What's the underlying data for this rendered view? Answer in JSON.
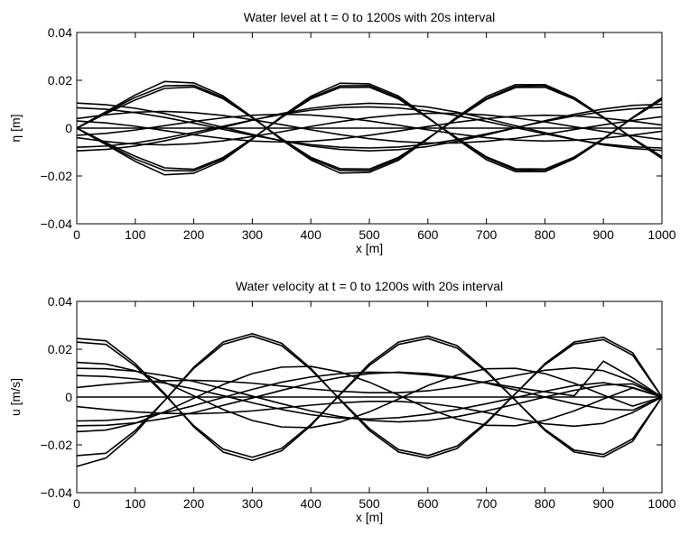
{
  "chart_data": [
    {
      "type": "line",
      "title": "Water level at t = 0 to 1200s with 20s interval",
      "xlabel": "x [m]",
      "ylabel": "η [m]",
      "xlim": [
        0,
        1000
      ],
      "ylim": [
        -0.04,
        0.04
      ],
      "xticks": [
        0,
        100,
        200,
        300,
        400,
        500,
        600,
        700,
        800,
        900,
        1000
      ],
      "yticks": [
        -0.04,
        -0.02,
        0,
        0.02,
        0.04
      ],
      "xtick_labels": [
        "0",
        "100",
        "200",
        "300",
        "400",
        "500",
        "600",
        "700",
        "800",
        "900",
        "1000"
      ],
      "ytick_labels": [
        "−0.04",
        "−0.02",
        "0",
        "0.02",
        "0.04"
      ],
      "grid": false,
      "line_color": "#000000",
      "x": [
        0,
        50,
        100,
        150,
        200,
        250,
        300,
        350,
        400,
        450,
        500,
        550,
        600,
        650,
        700,
        750,
        800,
        850,
        900,
        950,
        1000
      ],
      "series": [
        {
          "values": [
            0,
            0.0069,
            0.0139,
            0.0195,
            0.0189,
            0.0135,
            0.0046,
            -0.0049,
            -0.0133,
            -0.0188,
            -0.0185,
            -0.0134,
            -0.0045,
            0.0047,
            0.0132,
            0.0182,
            0.0182,
            0.0128,
            0.0046,
            -0.0045,
            -0.0127
          ]
        },
        {
          "values": [
            0,
            0.0066,
            0.0129,
            0.0177,
            0.0179,
            0.0128,
            0.0045,
            -0.0046,
            -0.0127,
            -0.0177,
            -0.0178,
            -0.0127,
            -0.0043,
            0.0043,
            0.0124,
            0.0175,
            0.0178,
            0.0125,
            0.0045,
            -0.0043,
            -0.0123
          ]
        },
        {
          "values": [
            0,
            0.0061,
            0.0118,
            0.0166,
            0.0172,
            0.0123,
            0.0043,
            -0.0044,
            -0.0122,
            -0.017,
            -0.0171,
            -0.0122,
            -0.0042,
            0.0041,
            0.012,
            0.017,
            0.0171,
            0.0121,
            0.0043,
            -0.0042,
            -0.0119
          ]
        },
        {
          "values": [
            0,
            -0.0069,
            -0.0139,
            -0.0195,
            -0.0189,
            -0.0135,
            -0.0046,
            0.0049,
            0.0133,
            0.0188,
            0.0185,
            0.0134,
            0.0045,
            -0.0047,
            -0.0132,
            -0.0182,
            -0.0182,
            -0.0128,
            -0.0046,
            0.0045,
            0.0127
          ]
        },
        {
          "values": [
            0,
            -0.0066,
            -0.0129,
            -0.0177,
            -0.0179,
            -0.0128,
            -0.0045,
            0.0046,
            0.0127,
            0.0177,
            0.0178,
            0.0127,
            0.0043,
            -0.0043,
            -0.0124,
            -0.0175,
            -0.0178,
            -0.0125,
            -0.0045,
            0.0043,
            0.0123
          ]
        },
        {
          "values": [
            0,
            -0.0061,
            -0.0118,
            -0.0166,
            -0.0172,
            -0.0123,
            -0.0043,
            0.0044,
            0.0122,
            0.017,
            0.0171,
            0.0122,
            0.0042,
            -0.0041,
            -0.012,
            -0.017,
            -0.0171,
            -0.0121,
            -0.0043,
            0.0042,
            0.0119
          ]
        },
        {
          "values": [
            0.0105,
            0.0098,
            0.0083,
            0.0061,
            0.0033,
            0.0003,
            -0.0026,
            -0.0053,
            -0.0075,
            -0.0089,
            -0.0095,
            -0.009,
            -0.0077,
            -0.0055,
            -0.0028,
            0.0001,
            0.0031,
            0.0058,
            0.008,
            0.0095,
            0.01
          ]
        },
        {
          "values": [
            -0.0095,
            -0.0089,
            -0.0075,
            -0.0053,
            -0.0026,
            0.0003,
            0.0033,
            0.0061,
            0.0083,
            0.0097,
            0.0104,
            0.01,
            0.0088,
            0.0067,
            0.004,
            0.001,
            -0.0019,
            -0.0047,
            -0.007,
            -0.0085,
            -0.0093
          ]
        },
        {
          "values": [
            0.004,
            0.0056,
            0.0067,
            0.007,
            0.0065,
            0.0053,
            0.0035,
            0.0015,
            -0.0007,
            -0.0027,
            -0.0044,
            -0.0056,
            -0.0062,
            -0.0062,
            -0.0055,
            -0.0043,
            -0.0026,
            -0.0006,
            0.0014,
            0.0032,
            0.0048
          ]
        },
        {
          "values": [
            -0.004,
            -0.0056,
            -0.0067,
            -0.007,
            -0.0065,
            -0.0053,
            -0.0035,
            -0.0015,
            0.0007,
            0.0027,
            0.0044,
            0.0056,
            0.0062,
            0.0062,
            0.0055,
            0.0043,
            0.0026,
            0.0006,
            -0.0014,
            -0.0032,
            -0.0048
          ]
        },
        {
          "values": [
            -0.003,
            -0.0022,
            -0.0008,
            0.001,
            0.0028,
            0.0043,
            0.0054,
            0.0058,
            0.0055,
            0.0045,
            0.003,
            0.0012,
            -0.0007,
            -0.0025,
            -0.004,
            -0.005,
            -0.0054,
            -0.0051,
            -0.0042,
            -0.0029,
            -0.0013
          ]
        },
        {
          "values": [
            0.003,
            0.0022,
            0.0008,
            -0.001,
            -0.0028,
            -0.0043,
            -0.0054,
            -0.0058,
            -0.0055,
            -0.0045,
            -0.003,
            -0.0012,
            0.0007,
            0.0025,
            0.004,
            0.005,
            0.0054,
            0.0051,
            0.0042,
            0.0029,
            0.0013
          ]
        },
        {
          "values": [
            0.0085,
            0.0079,
            0.0065,
            0.0045,
            0.0021,
            -0.0005,
            -0.003,
            -0.0052,
            -0.0069,
            -0.008,
            -0.0083,
            -0.0079,
            -0.0067,
            -0.0048,
            -0.0024,
            0.0002,
            0.0028,
            0.0051,
            0.0069,
            0.0081,
            0.0087
          ]
        },
        {
          "values": [
            -0.008,
            -0.0075,
            -0.0062,
            -0.0042,
            -0.0018,
            0.0008,
            0.0034,
            0.0057,
            0.0075,
            0.0086,
            0.0089,
            0.0084,
            0.0072,
            0.0052,
            0.0028,
            0.0002,
            -0.0024,
            -0.0048,
            -0.0066,
            -0.0078,
            -0.0083
          ]
        },
        {
          "values": [
            0,
            0,
            0,
            0,
            0,
            0,
            0,
            0,
            0,
            0,
            0,
            0,
            0,
            0,
            0,
            0,
            0,
            0,
            0,
            0,
            0
          ]
        }
      ]
    },
    {
      "type": "line",
      "title": "Water velocity at t = 0 to 1200s with 20s interval",
      "xlabel": "x [m]",
      "ylabel": "u [m/s]",
      "xlim": [
        0,
        1000
      ],
      "ylim": [
        -0.04,
        0.04
      ],
      "xticks": [
        0,
        100,
        200,
        300,
        400,
        500,
        600,
        700,
        800,
        900,
        1000
      ],
      "yticks": [
        -0.04,
        -0.02,
        0,
        0.02,
        0.04
      ],
      "xtick_labels": [
        "0",
        "100",
        "200",
        "300",
        "400",
        "500",
        "600",
        "700",
        "800",
        "900",
        "1000"
      ],
      "ytick_labels": [
        "−0.04",
        "−0.02",
        "0",
        "0.02",
        "0.04"
      ],
      "grid": false,
      "line_color": "#000000",
      "x": [
        0,
        50,
        100,
        150,
        200,
        250,
        300,
        350,
        400,
        450,
        500,
        550,
        600,
        650,
        700,
        750,
        800,
        850,
        900,
        950,
        1000
      ],
      "series": [
        {
          "values": [
            0.0245,
            0.0235,
            0.014,
            0.0015,
            -0.0125,
            -0.023,
            -0.0265,
            -0.0225,
            -0.012,
            0.0012,
            0.014,
            0.023,
            0.0255,
            0.0215,
            0.011,
            -0.0015,
            -0.014,
            -0.023,
            -0.025,
            -0.0185,
            0
          ]
        },
        {
          "values": [
            0.023,
            0.022,
            0.013,
            0.001,
            -0.012,
            -0.0218,
            -0.0252,
            -0.0215,
            -0.0115,
            0.001,
            0.0132,
            0.022,
            0.0245,
            0.0205,
            0.0105,
            -0.0015,
            -0.0135,
            -0.0222,
            -0.024,
            -0.0175,
            0
          ]
        },
        {
          "values": [
            -0.0245,
            -0.0235,
            -0.014,
            -0.0015,
            0.0125,
            0.023,
            0.0265,
            0.0225,
            0.012,
            -0.0012,
            -0.014,
            -0.023,
            -0.0255,
            -0.0215,
            -0.011,
            0.0015,
            0.014,
            0.023,
            0.025,
            0.0185,
            0
          ]
        },
        {
          "values": [
            -0.029,
            -0.0255,
            -0.015,
            -0.0015,
            0.012,
            0.022,
            0.0255,
            0.0215,
            0.0115,
            -0.001,
            -0.0132,
            -0.022,
            -0.0245,
            -0.0205,
            -0.0105,
            0.0015,
            0.0135,
            0.0222,
            0.024,
            0.0175,
            0
          ]
        },
        {
          "values": [
            0.0145,
            0.0138,
            0.011,
            0.0062,
            0.0005,
            -0.0052,
            -0.0098,
            -0.0125,
            -0.0128,
            -0.0105,
            -0.0062,
            -0.0008,
            0.0048,
            0.0092,
            0.0118,
            0.012,
            0.0098,
            0.0058,
            0.0008,
            -0.0038,
            0
          ]
        },
        {
          "values": [
            -0.0145,
            -0.0138,
            -0.011,
            -0.0062,
            -0.0005,
            0.0052,
            0.0098,
            0.0125,
            0.0128,
            0.0105,
            0.0062,
            0.0008,
            -0.0048,
            -0.0092,
            -0.0118,
            -0.012,
            -0.0098,
            -0.0058,
            -0.0008,
            0.0038,
            0
          ]
        },
        {
          "values": [
            -0.01,
            -0.0098,
            -0.0088,
            -0.0066,
            -0.0036,
            -0.0002,
            0.0032,
            0.0062,
            0.0084,
            0.0098,
            0.0104,
            0.0102,
            0.0092,
            0.0078,
            0.006,
            0.004,
            0.0022,
            0.0005,
            0.015,
            0.008,
            0
          ]
        },
        {
          "values": [
            0.009,
            0.0086,
            0.0076,
            0.0058,
            0.0034,
            0.0006,
            -0.0024,
            -0.0052,
            -0.0074,
            -0.0088,
            -0.0092,
            -0.0086,
            -0.0072,
            -0.0052,
            -0.0028,
            -0.0002,
            0.0024,
            0.0048,
            0.006,
            0.004,
            0
          ]
        },
        {
          "values": [
            0.012,
            0.0118,
            0.0108,
            0.009,
            0.0065,
            0.0035,
            0.0004,
            -0.0028,
            -0.0058,
            -0.0082,
            -0.0098,
            -0.0104,
            -0.0098,
            -0.0082,
            -0.0058,
            -0.003,
            0,
            0.0028,
            0.005,
            0.0055,
            0
          ]
        },
        {
          "values": [
            -0.012,
            -0.0118,
            -0.0108,
            -0.009,
            -0.0065,
            -0.0035,
            -0.0004,
            0.0028,
            0.0058,
            0.0082,
            0.0098,
            0.0104,
            0.0098,
            0.0082,
            0.0058,
            0.003,
            0,
            -0.0028,
            -0.005,
            -0.0055,
            0
          ]
        },
        {
          "values": [
            0.004,
            0.0052,
            0.0062,
            0.0068,
            0.007,
            0.0066,
            0.0058,
            0.0046,
            0.0034,
            0.0024,
            0.0018,
            0.0018,
            0.0026,
            0.0042,
            0.0065,
            0.009,
            0.0112,
            0.0122,
            0.011,
            0.0065,
            0
          ]
        },
        {
          "values": [
            -0.004,
            -0.0052,
            -0.0062,
            -0.0068,
            -0.007,
            -0.0066,
            -0.0058,
            -0.0046,
            -0.0034,
            -0.0024,
            -0.0018,
            -0.0018,
            -0.0026,
            -0.0042,
            -0.0065,
            -0.009,
            -0.0112,
            -0.0122,
            -0.011,
            -0.0065,
            0
          ]
        },
        {
          "values": [
            0,
            0,
            0,
            0,
            0,
            0,
            0,
            0,
            0,
            0,
            0,
            0,
            0,
            0,
            0,
            0,
            0,
            0,
            0,
            0,
            0
          ]
        }
      ]
    }
  ]
}
